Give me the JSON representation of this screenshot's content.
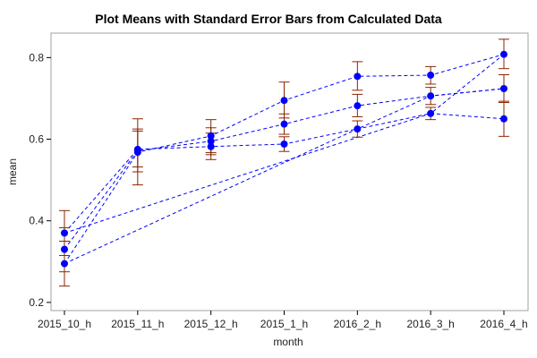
{
  "chart_data": {
    "type": "line",
    "title": "Plot Means with Standard Error Bars from Calculated Data",
    "xlabel": "month",
    "ylabel": "mean",
    "categories": [
      "2015_10_h",
      "2015_11_h",
      "2015_12_h",
      "2015_1_h",
      "2016_2_h",
      "2016_3_h",
      "2016_4_h"
    ],
    "ylim": [
      0.18,
      0.86
    ],
    "yticks": [
      0.2,
      0.4,
      0.6,
      0.8
    ],
    "ytick_labels": [
      "0.2",
      "0.4",
      "0.6",
      "0.8"
    ],
    "grid": false,
    "legend": "none",
    "series": [
      {
        "values": [
          0.37,
          0.575,
          0.582,
          0.588,
          0.625,
          0.663,
          0.65
        ]
      },
      {
        "values": [
          0.33,
          0.572,
          0.595,
          0.637,
          0.682,
          0.706,
          0.724
        ]
      },
      {
        "values": [
          0.295,
          0.568,
          0.608,
          0.695,
          0.754,
          0.757,
          0.808
        ]
      },
      {
        "values": [
          0.37,
          null,
          null,
          null,
          null,
          0.663,
          0.808
        ]
      },
      {
        "values": [
          0.295,
          null,
          null,
          null,
          0.625,
          0.706,
          0.724
        ]
      }
    ],
    "means": [
      [
        0.37,
        0.33,
        0.295
      ],
      [
        0.575,
        0.572,
        0.568
      ],
      [
        0.582,
        0.595,
        0.608
      ],
      [
        0.588,
        0.637,
        0.695
      ],
      [
        0.625,
        0.682,
        0.754
      ],
      [
        0.663,
        0.706,
        0.757
      ],
      [
        0.65,
        0.724,
        0.808
      ]
    ],
    "error_bars": [
      [
        {
          "low": 0.315,
          "high": 0.425
        },
        {
          "low": 0.275,
          "high": 0.383
        },
        {
          "low": 0.24,
          "high": 0.35
        }
      ],
      [
        {
          "low": 0.532,
          "high": 0.62
        },
        {
          "low": 0.52,
          "high": 0.625
        },
        {
          "low": 0.488,
          "high": 0.65
        }
      ],
      [
        {
          "low": 0.55,
          "high": 0.615
        },
        {
          "low": 0.562,
          "high": 0.628
        },
        {
          "low": 0.567,
          "high": 0.648
        }
      ],
      [
        {
          "low": 0.57,
          "high": 0.606
        },
        {
          "low": 0.612,
          "high": 0.662
        },
        {
          "low": 0.652,
          "high": 0.74
        }
      ],
      [
        {
          "low": 0.605,
          "high": 0.645
        },
        {
          "low": 0.655,
          "high": 0.71
        },
        {
          "low": 0.72,
          "high": 0.79
        }
      ],
      [
        {
          "low": 0.648,
          "high": 0.678
        },
        {
          "low": 0.685,
          "high": 0.727
        },
        {
          "low": 0.735,
          "high": 0.778
        }
      ],
      [
        {
          "low": 0.607,
          "high": 0.693
        },
        {
          "low": 0.69,
          "high": 0.758
        },
        {
          "low": 0.773,
          "high": 0.845
        }
      ]
    ],
    "colors": {
      "marker": "#0000ff",
      "line": "#0000ff",
      "error_bar": "#8b2500",
      "frame": "#a0a0a0",
      "background": "#ffffff"
    }
  }
}
